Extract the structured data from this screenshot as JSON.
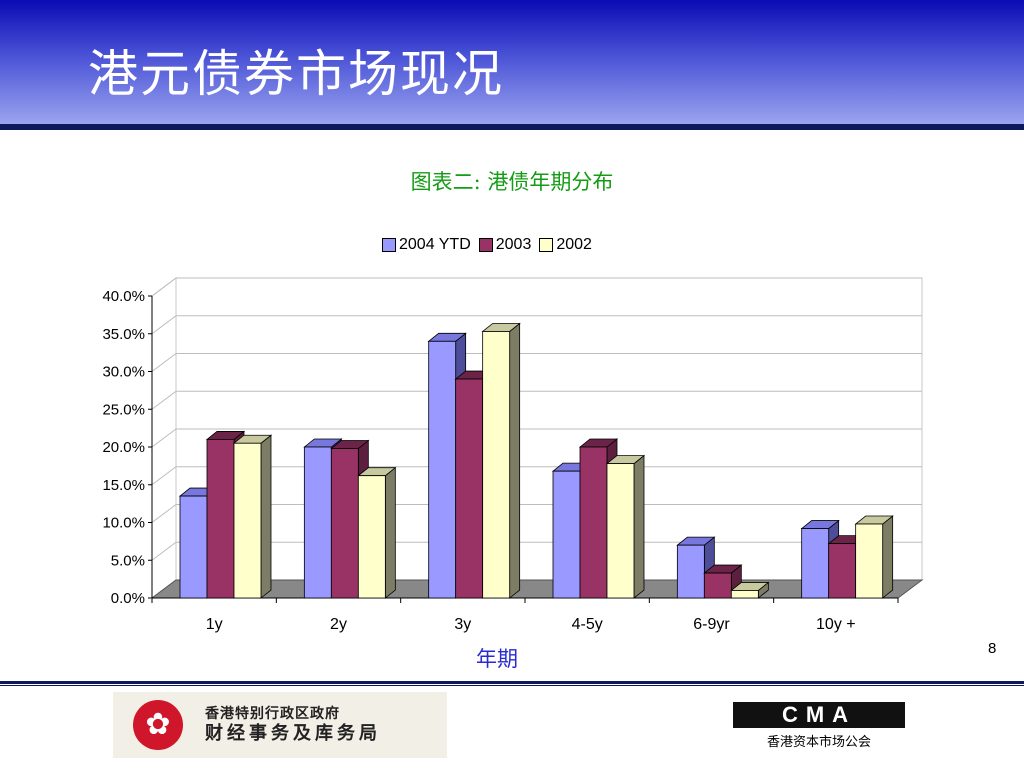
{
  "slide": {
    "title": "港元债券市场现况",
    "page_number": "8"
  },
  "footer": {
    "gov_line1": "香港特别行政区政府",
    "gov_line2": "财经事务及库务局",
    "cma_logo": "CMA",
    "cma_name": "香港资本市场公会"
  },
  "colors": {
    "header_top": "#0b0bb4",
    "header_bottom": "#9aa4ee",
    "title_green": "#149c14",
    "xlabel_blue": "#2a2ad0"
  },
  "chart_data": {
    "type": "bar",
    "title": "图表二: 港债年期分布",
    "xlabel": "年期",
    "ylabel": "",
    "categories": [
      "1y",
      "2y",
      "3y",
      "4-5y",
      "6-9yr",
      "10y +"
    ],
    "series": [
      {
        "name": "2004 YTD",
        "values": [
          13.5,
          20.0,
          34.0,
          16.8,
          7.0,
          9.2
        ],
        "color": "#9999ff",
        "side": "#4d4d99",
        "top": "#7777dd"
      },
      {
        "name": "2003",
        "values": [
          21.0,
          19.8,
          29.0,
          20.0,
          3.3,
          7.2
        ],
        "color": "#993366",
        "side": "#5c1f3d",
        "top": "#6b2447"
      },
      {
        "name": "2002",
        "values": [
          20.5,
          16.2,
          35.3,
          17.8,
          1.0,
          9.8
        ],
        "color": "#ffffcc",
        "side": "#7d7d66",
        "top": "#c9c9a0"
      }
    ],
    "ylim": [
      0,
      40
    ],
    "yticks": [
      "0.0%",
      "5.0%",
      "10.0%",
      "15.0%",
      "20.0%",
      "25.0%",
      "30.0%",
      "35.0%",
      "40.0%"
    ],
    "grid": true,
    "legend": "top"
  }
}
